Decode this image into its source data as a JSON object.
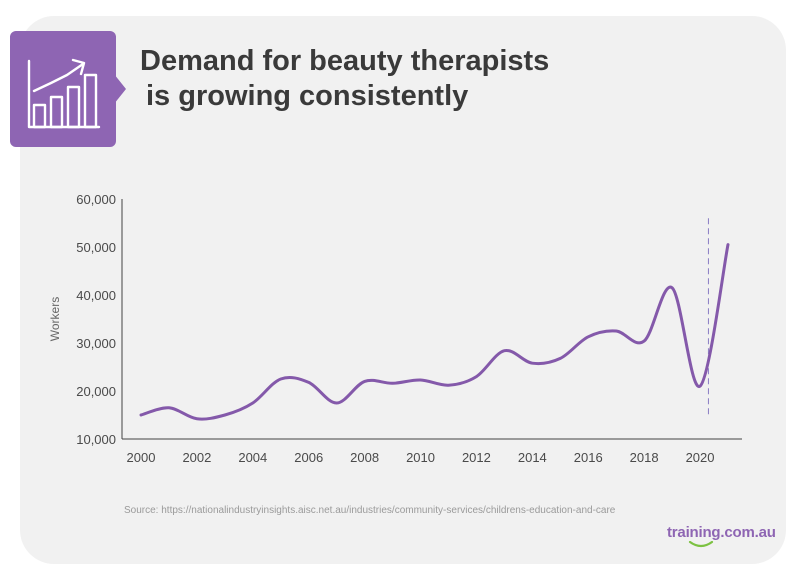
{
  "header": {
    "title_line1": "Demand for beauty therapists",
    "title_line2": "is growing consistently",
    "icon": "bar-chart-growth-icon",
    "badge_color": "#8e65b3"
  },
  "source_text": "Source: https://nationalindustryinsights.aisc.net.au/industries/community-services/childrens-education-and-care",
  "brand": {
    "text": "training.com.au",
    "accent_color": "#7cc242"
  },
  "chart_data": {
    "type": "line",
    "title": "",
    "xlabel": "",
    "ylabel": "Workers",
    "x": [
      2000,
      2001,
      2002,
      2003,
      2004,
      2005,
      2006,
      2007,
      2008,
      2009,
      2010,
      2011,
      2012,
      2013,
      2014,
      2015,
      2016,
      2017,
      2018,
      2019,
      2020,
      2021
    ],
    "series": [
      {
        "values": [
          15000,
          16500,
          14200,
          15000,
          17500,
          22500,
          21800,
          17500,
          22000,
          21600,
          22300,
          21200,
          23000,
          28400,
          25800,
          26800,
          31300,
          32500,
          30400,
          41500,
          21000,
          50500
        ],
        "color": "#8459aa"
      }
    ],
    "xticks": [
      "2000",
      "2002",
      "2004",
      "2006",
      "2008",
      "2010",
      "2012",
      "2014",
      "2016",
      "2018",
      "2020"
    ],
    "yticks": [
      "10,000",
      "20,000",
      "30,000",
      "40,000",
      "50,000",
      "60,000"
    ],
    "xlim": [
      2000,
      2021
    ],
    "ylim": [
      10000,
      60000
    ],
    "reference_line": {
      "x": 2020.3,
      "y_from": 14500,
      "y_to": 56000,
      "style": "dashed",
      "color": "#8a7dc4"
    },
    "grid": false
  }
}
